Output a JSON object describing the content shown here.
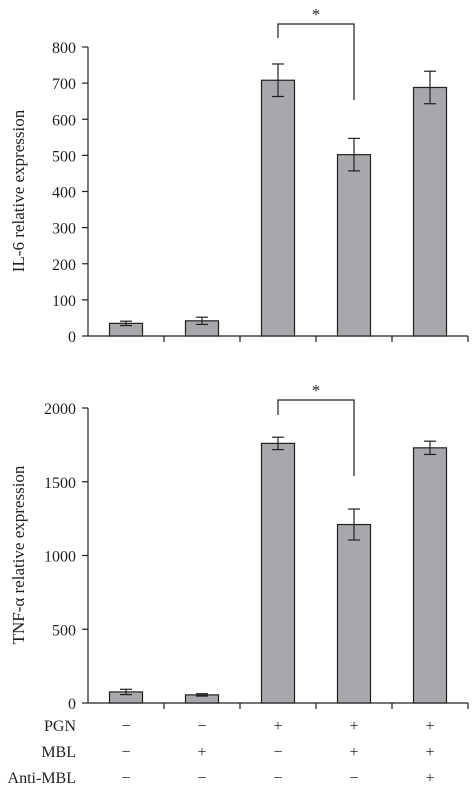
{
  "chart_data": [
    {
      "type": "bar",
      "categories": [
        "1",
        "2",
        "3",
        "4",
        "5"
      ],
      "values": [
        35,
        42,
        708,
        502,
        688
      ],
      "errors": [
        6,
        10,
        45,
        45,
        45
      ],
      "ylabel": "IL-6 relative expression",
      "ylim": [
        0,
        800
      ],
      "yticks": [
        "0",
        "100",
        "200",
        "300",
        "400",
        "500",
        "600",
        "700",
        "800"
      ],
      "significance": {
        "from": 2,
        "to": 3,
        "label": "*"
      },
      "colors": {
        "bar": "#a7a8ab",
        "line": "#231f20"
      }
    },
    {
      "type": "bar",
      "categories": [
        "1",
        "2",
        "3",
        "4",
        "5"
      ],
      "values": [
        75,
        55,
        1760,
        1210,
        1730
      ],
      "errors": [
        18,
        8,
        42,
        105,
        45
      ],
      "ylabel": "TNF-α relative expression",
      "ylim": [
        0,
        2000
      ],
      "yticks": [
        "0",
        "500",
        "1000",
        "1500",
        "2000"
      ],
      "significance": {
        "from": 2,
        "to": 3,
        "label": "*"
      },
      "colors": {
        "bar": "#a7a8ab",
        "line": "#231f20"
      }
    }
  ],
  "treatments": [
    {
      "label": "PGN",
      "signs": [
        "−",
        "−",
        "+",
        "+",
        "+"
      ]
    },
    {
      "label": "MBL",
      "signs": [
        "−",
        "+",
        "−",
        "+",
        "+"
      ]
    },
    {
      "label": "Anti-MBL",
      "signs": [
        "−",
        "−",
        "−",
        "−",
        "+"
      ]
    }
  ]
}
